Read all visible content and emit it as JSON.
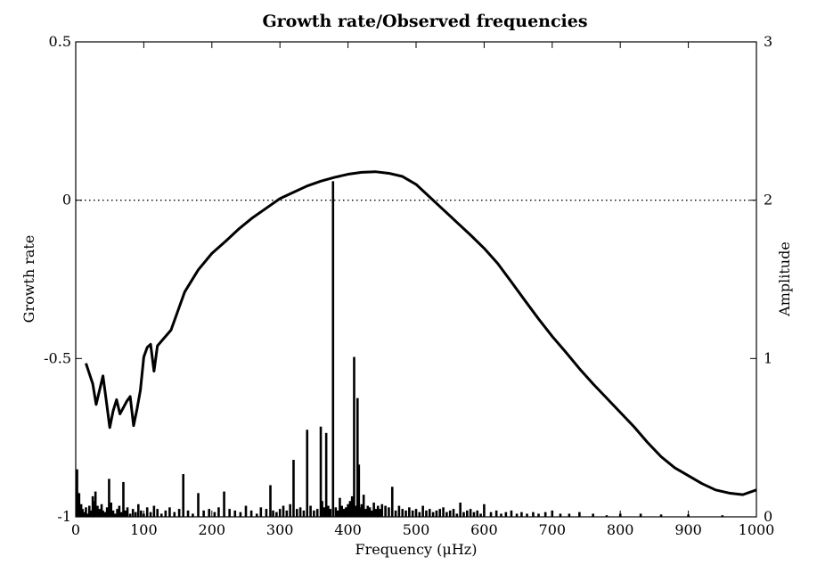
{
  "chart_data": {
    "type": "line+bar",
    "title": "Growth rate/Observed frequencies",
    "xlabel": "Frequency (μHz)",
    "ylabel_left": "Growth rate",
    "ylabel_right": "Amplitude",
    "xlim": [
      0,
      1000
    ],
    "ylim_left": [
      -1,
      0.5
    ],
    "ylim_right": [
      0,
      3
    ],
    "xticks": [
      0,
      100,
      200,
      300,
      400,
      500,
      600,
      700,
      800,
      900,
      1000
    ],
    "xtick_labels": [
      "0",
      "100",
      "200",
      "300",
      "400",
      "500",
      "600",
      "700",
      "800",
      "900",
      "1000"
    ],
    "yticks_left": [
      0.5,
      0,
      -0.5,
      -1
    ],
    "ytick_labels_left": [
      "0.5",
      "0",
      "-0.5",
      "-1"
    ],
    "yticks_right": [
      3,
      2,
      1,
      0
    ],
    "ytick_labels_right": [
      "3",
      "2",
      "1",
      "0"
    ],
    "reference_line": {
      "axis": "left",
      "y": 0,
      "style": "dotted"
    },
    "growth_rate": {
      "name": "Growth rate",
      "axis": "left",
      "x": [
        15,
        25,
        30,
        35,
        40,
        45,
        50,
        55,
        60,
        65,
        70,
        75,
        80,
        85,
        90,
        95,
        100,
        105,
        110,
        115,
        120,
        140,
        160,
        180,
        200,
        220,
        240,
        260,
        280,
        300,
        320,
        340,
        360,
        380,
        400,
        420,
        440,
        460,
        480,
        500,
        520,
        540,
        560,
        580,
        600,
        620,
        640,
        660,
        680,
        700,
        720,
        740,
        760,
        780,
        800,
        820,
        840,
        860,
        880,
        900,
        920,
        940,
        960,
        980,
        1000
      ],
      "y": [
        -0.515,
        -0.58,
        -0.645,
        -0.6,
        -0.555,
        -0.635,
        -0.718,
        -0.665,
        -0.63,
        -0.675,
        -0.655,
        -0.635,
        -0.62,
        -0.712,
        -0.66,
        -0.6,
        -0.495,
        -0.465,
        -0.455,
        -0.54,
        -0.46,
        -0.41,
        -0.29,
        -0.22,
        -0.168,
        -0.13,
        -0.09,
        -0.055,
        -0.025,
        0.005,
        0.025,
        0.045,
        0.06,
        0.072,
        0.082,
        0.088,
        0.09,
        0.085,
        0.075,
        0.05,
        0.01,
        -0.03,
        -0.07,
        -0.11,
        -0.152,
        -0.2,
        -0.258,
        -0.317,
        -0.375,
        -0.43,
        -0.48,
        -0.532,
        -0.58,
        -0.625,
        -0.67,
        -0.715,
        -0.765,
        -0.81,
        -0.845,
        -0.87,
        -0.895,
        -0.915,
        -0.925,
        -0.93,
        -0.915
      ]
    },
    "observed_amplitudes": {
      "name": "Observed frequencies",
      "axis": "right",
      "x": [
        2,
        5,
        8,
        10,
        12,
        15,
        18,
        20,
        23,
        25,
        27,
        29,
        32,
        35,
        38,
        40,
        43,
        46,
        49,
        52,
        55,
        58,
        61,
        64,
        67,
        70,
        73,
        76,
        80,
        84,
        88,
        92,
        96,
        100,
        105,
        110,
        115,
        120,
        126,
        132,
        138,
        145,
        152,
        158,
        165,
        172,
        180,
        188,
        196,
        204,
        210,
        218,
        226,
        234,
        242,
        250,
        258,
        266,
        272,
        280,
        286,
        290,
        295,
        300,
        305,
        310,
        315,
        320,
        325,
        330,
        335,
        340,
        345,
        350,
        355,
        360,
        362,
        365,
        368,
        371,
        374,
        378,
        382,
        385,
        388,
        391,
        394,
        397,
        400,
        403,
        406,
        409,
        412,
        414,
        416,
        418,
        420,
        423,
        426,
        429,
        432,
        435,
        438,
        441,
        444,
        447,
        450,
        455,
        460,
        465,
        470,
        475,
        480,
        485,
        490,
        495,
        500,
        505,
        510,
        515,
        520,
        525,
        530,
        535,
        540,
        545,
        550,
        555,
        560,
        565,
        570,
        575,
        580,
        585,
        590,
        595,
        600,
        610,
        618,
        625,
        632,
        640,
        648,
        655,
        663,
        672,
        680,
        690,
        700,
        712,
        725,
        740,
        760,
        780,
        800,
        830,
        860,
        900,
        950
      ],
      "y": [
        0.3,
        0.15,
        0.08,
        0.05,
        0.03,
        0.06,
        0.02,
        0.07,
        0.04,
        0.13,
        0.1,
        0.16,
        0.07,
        0.05,
        0.08,
        0.04,
        0.03,
        0.06,
        0.24,
        0.09,
        0.04,
        0.02,
        0.05,
        0.07,
        0.03,
        0.22,
        0.04,
        0.06,
        0.02,
        0.05,
        0.03,
        0.08,
        0.04,
        0.02,
        0.06,
        0.03,
        0.07,
        0.05,
        0.02,
        0.04,
        0.06,
        0.03,
        0.05,
        0.27,
        0.04,
        0.02,
        0.15,
        0.04,
        0.05,
        0.03,
        0.06,
        0.16,
        0.05,
        0.04,
        0.03,
        0.07,
        0.04,
        0.02,
        0.06,
        0.05,
        0.2,
        0.04,
        0.03,
        0.05,
        0.07,
        0.04,
        0.08,
        0.36,
        0.05,
        0.06,
        0.04,
        0.55,
        0.07,
        0.04,
        0.05,
        0.57,
        0.1,
        0.06,
        0.53,
        0.07,
        0.05,
        2.12,
        0.06,
        0.04,
        0.12,
        0.07,
        0.05,
        0.06,
        0.08,
        0.1,
        0.13,
        1.01,
        0.07,
        0.75,
        0.33,
        0.06,
        0.08,
        0.14,
        0.05,
        0.07,
        0.06,
        0.04,
        0.09,
        0.05,
        0.07,
        0.05,
        0.08,
        0.07,
        0.06,
        0.19,
        0.04,
        0.07,
        0.05,
        0.04,
        0.06,
        0.04,
        0.05,
        0.03,
        0.07,
        0.04,
        0.05,
        0.03,
        0.04,
        0.05,
        0.06,
        0.03,
        0.04,
        0.05,
        0.02,
        0.09,
        0.03,
        0.04,
        0.05,
        0.03,
        0.04,
        0.02,
        0.08,
        0.03,
        0.04,
        0.02,
        0.03,
        0.04,
        0.02,
        0.03,
        0.02,
        0.03,
        0.02,
        0.03,
        0.04,
        0.02,
        0.02,
        0.03,
        0.02,
        0.01,
        0.02,
        0.02,
        0.015,
        0.015,
        0.01
      ]
    }
  }
}
